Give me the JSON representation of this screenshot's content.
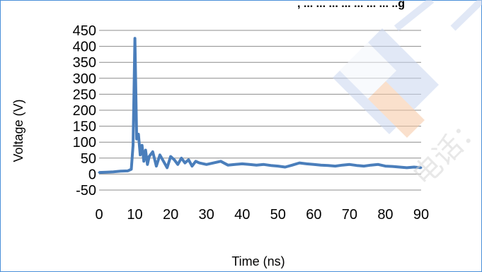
{
  "chart_data": {
    "type": "line",
    "title": ", ... ... ... ... ... ... ... ..g",
    "xlabel": "Time (ns)",
    "ylabel": "Voltage (V)",
    "xlim": [
      0,
      90
    ],
    "ylim": [
      -50,
      450
    ],
    "x_ticks": [
      "0",
      "10",
      "20",
      "30",
      "40",
      "50",
      "60",
      "70",
      "80",
      "90"
    ],
    "y_ticks": [
      "450",
      "400",
      "350",
      "300",
      "250",
      "200",
      "150",
      "100",
      "50",
      "0",
      "-50"
    ],
    "grid": "horizontal",
    "series": [
      {
        "color": "#4a7ebb",
        "x": [
          0,
          2,
          4,
          6,
          8,
          9,
          9.5,
          9.8,
          10,
          10.2,
          10.5,
          11,
          11.5,
          12,
          12.5,
          13,
          13.5,
          14,
          15,
          16,
          17,
          18,
          19,
          20,
          21,
          22,
          23,
          24,
          25,
          26,
          27,
          28,
          30,
          32,
          34,
          36,
          38,
          40,
          42,
          44,
          46,
          48,
          50,
          52,
          54,
          56,
          58,
          60,
          62,
          64,
          66,
          68,
          70,
          72,
          74,
          76,
          78,
          80,
          82,
          84,
          86,
          88,
          90
        ],
        "y": [
          5,
          6,
          7,
          9,
          10,
          15,
          90,
          280,
          425,
          300,
          110,
          125,
          60,
          90,
          40,
          75,
          30,
          55,
          70,
          25,
          60,
          40,
          20,
          55,
          45,
          30,
          50,
          35,
          45,
          25,
          40,
          35,
          30,
          35,
          40,
          28,
          30,
          32,
          30,
          28,
          30,
          27,
          25,
          22,
          28,
          35,
          32,
          30,
          28,
          27,
          25,
          28,
          30,
          27,
          25,
          28,
          30,
          25,
          24,
          22,
          20,
          22,
          20
        ]
      }
    ]
  },
  "watermark": {
    "text": "电话："
  }
}
